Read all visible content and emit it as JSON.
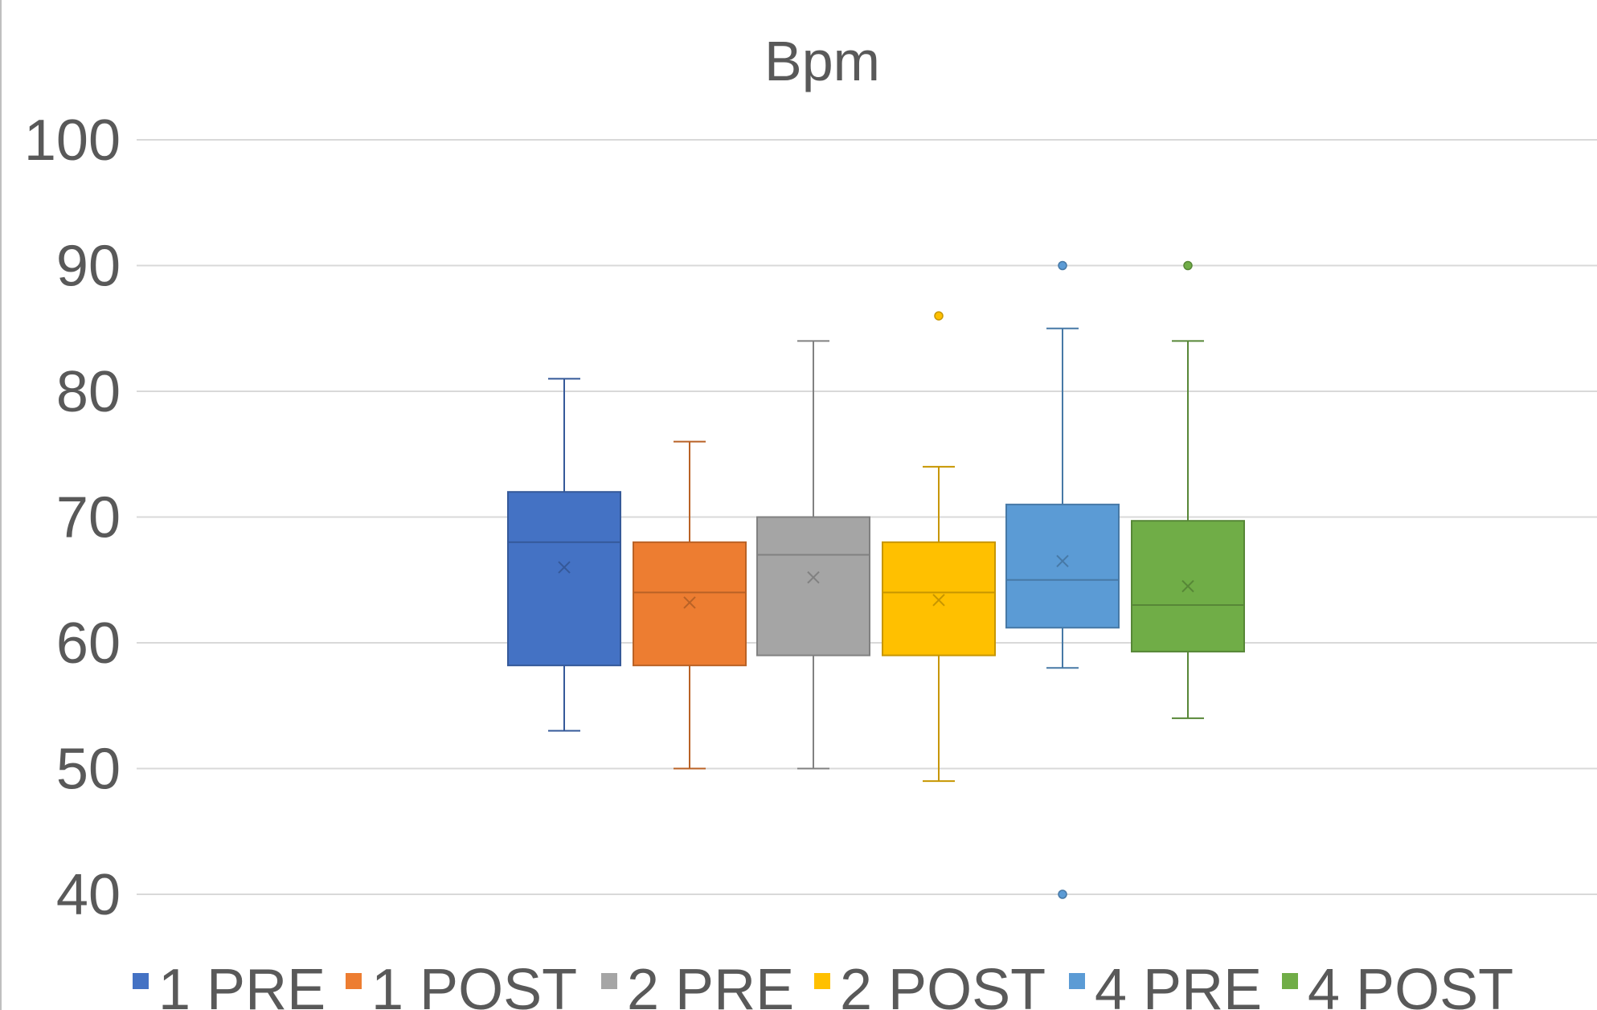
{
  "chart_data": {
    "type": "box",
    "title": "Bpm",
    "ylim": [
      40,
      100
    ],
    "yticks": [
      40,
      50,
      60,
      70,
      80,
      90,
      100
    ],
    "ytick_labels": [
      "40",
      "50",
      "60",
      "70",
      "80",
      "90",
      "100"
    ],
    "grid": true,
    "legend_position": "bottom",
    "series": [
      {
        "name": "1 PRE",
        "color": "#4472C4",
        "min": 53,
        "q1": 58.2,
        "median": 68,
        "q3": 72,
        "max": 81,
        "mean": 66,
        "outliers": []
      },
      {
        "name": "1 POST",
        "color": "#ED7D31",
        "min": 50,
        "q1": 58.2,
        "median": 64,
        "q3": 68,
        "max": 76,
        "mean": 63.2,
        "outliers": []
      },
      {
        "name": "2 PRE",
        "color": "#A5A5A5",
        "min": 50,
        "q1": 59,
        "median": 67,
        "q3": 70,
        "max": 84,
        "mean": 65.2,
        "outliers": []
      },
      {
        "name": "2 POST",
        "color": "#FFC000",
        "min": 49,
        "q1": 59,
        "median": 64,
        "q3": 68,
        "max": 74,
        "mean": 63.4,
        "outliers": [
          86
        ]
      },
      {
        "name": "4 PRE",
        "color": "#5B9BD5",
        "min": 58,
        "q1": 61.2,
        "median": 65,
        "q3": 71,
        "max": 85,
        "mean": 66.5,
        "outliers": [
          90,
          40
        ]
      },
      {
        "name": "4 POST",
        "color": "#70AD47",
        "min": 54,
        "q1": 59.3,
        "median": 63,
        "q3": 69.7,
        "max": 84,
        "mean": 64.5,
        "outliers": [
          90
        ]
      }
    ]
  }
}
